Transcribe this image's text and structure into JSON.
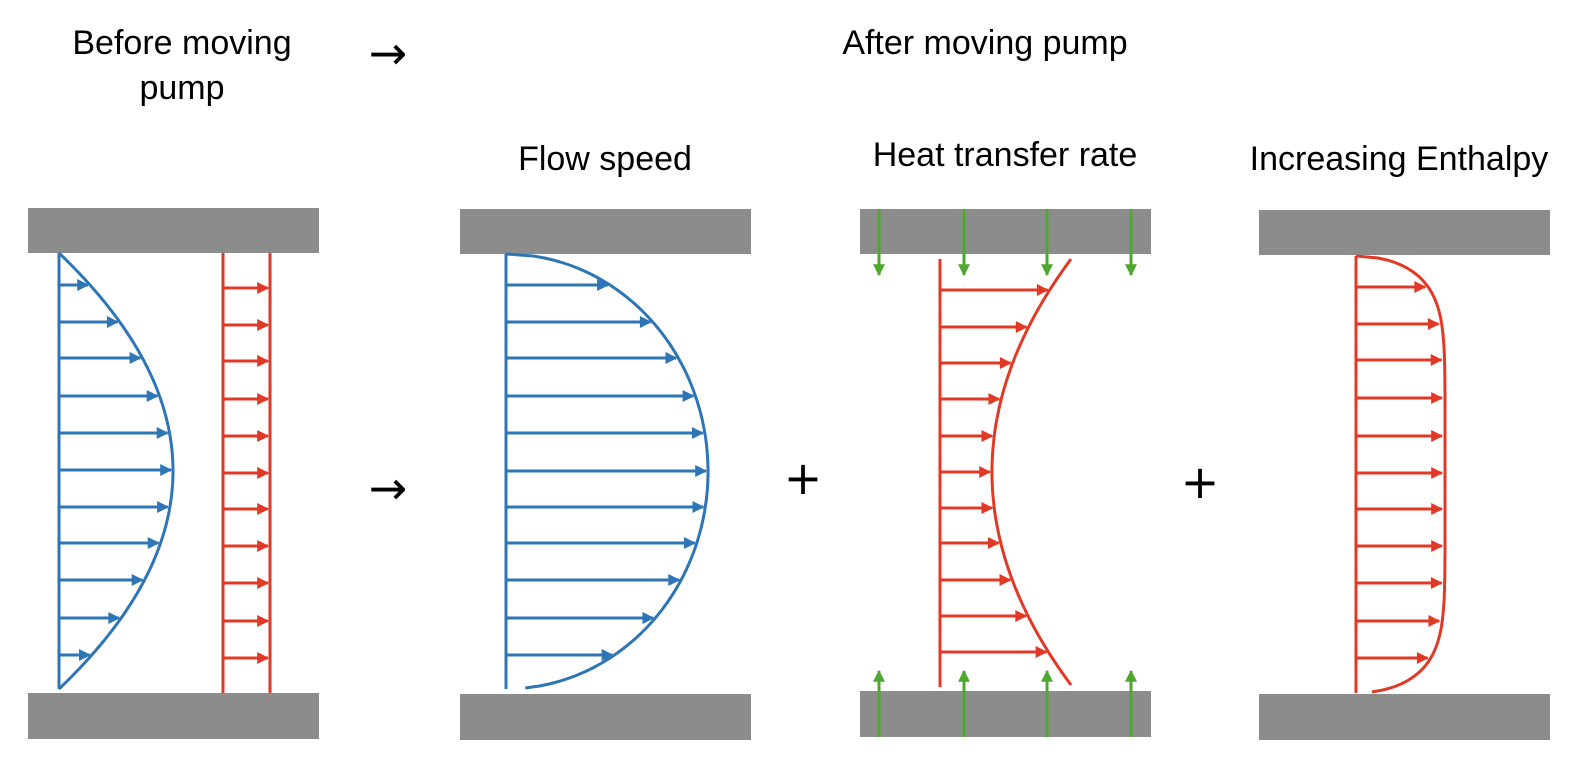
{
  "header": {
    "before_line1": "Before moving",
    "before_line2": "pump",
    "arrow_glyph": "→",
    "after_title": "After moving pump"
  },
  "panels": {
    "flow_speed_title": "Flow speed",
    "heat_transfer_title": "Heat transfer rate",
    "enthalpy_title": "Increasing Enthalpy"
  },
  "operators": {
    "arrow_glyph": "→",
    "plus_glyph": "+"
  },
  "colors": {
    "wall": "#8c8c8c",
    "flow_blue": "#2e75b6",
    "enthalpy_red": "#e03a26",
    "heat_green": "#4ea72e"
  }
}
